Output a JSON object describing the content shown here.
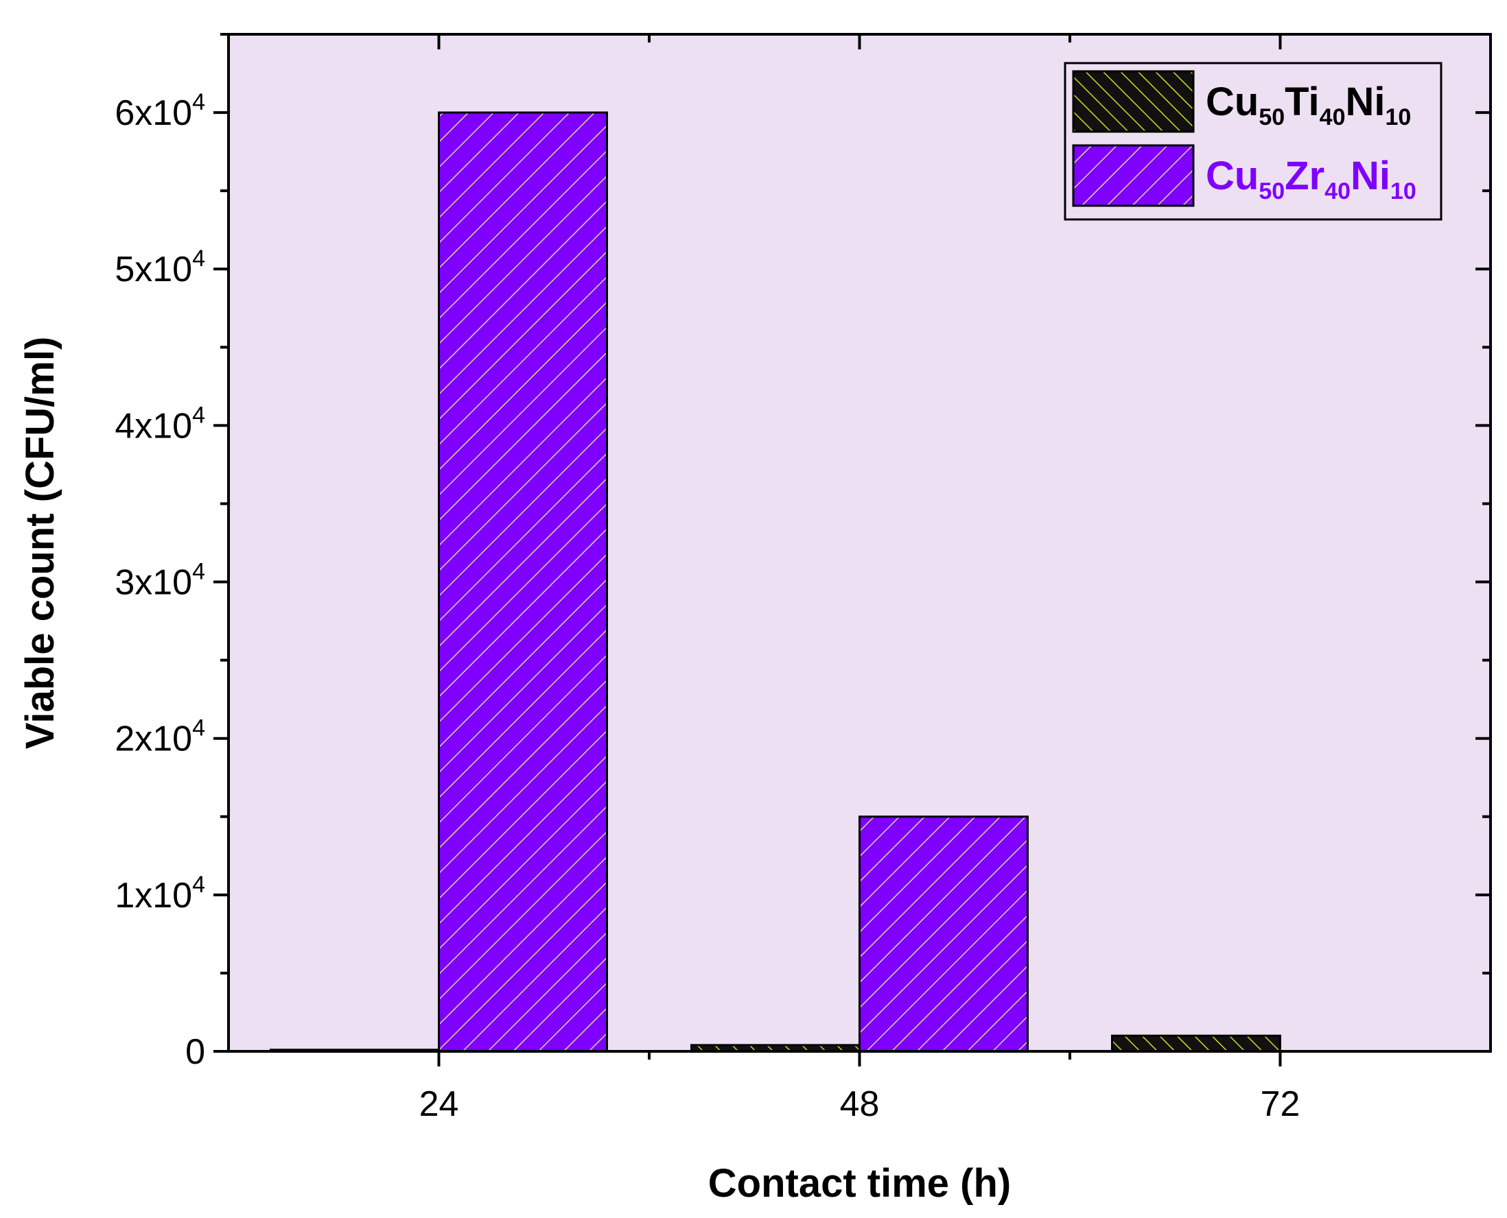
{
  "chart_data": {
    "type": "bar",
    "xlabel": "Contact time (h)",
    "ylabel": "Viable count (CFU/ml)",
    "categories": [
      "24",
      "48",
      "72"
    ],
    "ylim": [
      0,
      65000
    ],
    "yticks": [
      0,
      10000,
      20000,
      30000,
      40000,
      50000,
      60000
    ],
    "ytick_labels": [
      {
        "mant": "0",
        "exp": ""
      },
      {
        "mant": "1x10",
        "exp": "4"
      },
      {
        "mant": "2x10",
        "exp": "4"
      },
      {
        "mant": "3x10",
        "exp": "4"
      },
      {
        "mant": "4x10",
        "exp": "4"
      },
      {
        "mant": "5x10",
        "exp": "4"
      },
      {
        "mant": "6x10",
        "exp": "4"
      }
    ],
    "series": [
      {
        "name": "Cu50Ti40Ni10",
        "label_parts": [
          {
            "t": "Cu",
            "sub": false
          },
          {
            "t": "50",
            "sub": true
          },
          {
            "t": "Ti",
            "sub": false
          },
          {
            "t": "40",
            "sub": true
          },
          {
            "t": "Ni",
            "sub": false
          },
          {
            "t": "10",
            "sub": true
          }
        ],
        "values": [
          100,
          400,
          1000
        ],
        "fill": "#111111",
        "hatch": "#d8d820",
        "hatch_style": "backslash",
        "text_color": "#000000"
      },
      {
        "name": "Cu50Zr40Ni10",
        "label_parts": [
          {
            "t": "Cu",
            "sub": false
          },
          {
            "t": "50",
            "sub": true
          },
          {
            "t": "Zr",
            "sub": false
          },
          {
            "t": "40",
            "sub": true
          },
          {
            "t": "Ni",
            "sub": false
          },
          {
            "t": "10",
            "sub": true
          }
        ],
        "values": [
          60000,
          15000,
          0
        ],
        "fill": "#7f00ff",
        "hatch": "#d9d9a0",
        "hatch_style": "slash",
        "text_color": "#7f00ff"
      }
    ],
    "legend_position": "top-right",
    "plot_background": "#ede0f3",
    "grid": false
  }
}
